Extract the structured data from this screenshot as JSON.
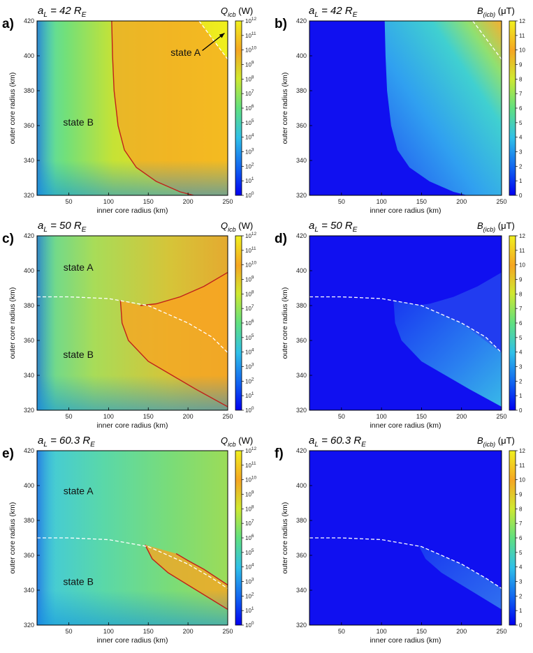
{
  "chart_data": [
    {
      "id": "a",
      "type": "heatmap",
      "panel_label": "a)",
      "title_symbol": "a",
      "title_sub": "L",
      "title_eq": " = 42 ",
      "title_unit_symbol": "R",
      "title_unit_sub": "E",
      "cbar_symbol": "Q",
      "cbar_sub": "icb",
      "cbar_unit": "(W)",
      "cbar_scale": "log",
      "cbar_ticks": [
        "10^0",
        "10^1",
        "10^2",
        "10^3",
        "10^4",
        "10^5",
        "10^6",
        "10^7",
        "10^8",
        "10^9",
        "10^10",
        "10^11",
        "10^12"
      ],
      "xlabel": "inner core radius (km)",
      "ylabel": "outer core radius (km)",
      "xlim": [
        10,
        250
      ],
      "ylim": [
        320,
        420
      ],
      "xticks": [
        50,
        100,
        150,
        200,
        250
      ],
      "yticks": [
        320,
        340,
        360,
        380,
        400,
        420
      ],
      "boundary": [
        [
          214,
          420
        ],
        [
          250,
          398
        ]
      ],
      "red_curve": [
        [
          104,
          420
        ],
        [
          105,
          400
        ],
        [
          107,
          380
        ],
        [
          112,
          360
        ],
        [
          120,
          346
        ],
        [
          135,
          336
        ],
        [
          160,
          328
        ],
        [
          190,
          322
        ],
        [
          207,
          320
        ]
      ],
      "red_curve2": [],
      "annotations": [
        {
          "text": "state A",
          "x": 197,
          "y": 400
        },
        {
          "text": "state B",
          "x": 62,
          "y": 360
        }
      ],
      "arrow": {
        "from": [
          218,
          403
        ],
        "to": [
          246,
          413
        ]
      }
    },
    {
      "id": "b",
      "type": "heatmap",
      "panel_label": "b)",
      "title_symbol": "a",
      "title_sub": "L",
      "title_eq": " = 42 ",
      "title_unit_symbol": "R",
      "title_unit_sub": "E",
      "cbar_symbol": "B",
      "cbar_sub": "(icb)",
      "cbar_unit": "(μT)",
      "cbar_scale": "linear",
      "cbar_ticks": [
        "0",
        "1",
        "2",
        "3",
        "4",
        "5",
        "6",
        "7",
        "8",
        "9",
        "10",
        "11",
        "12"
      ],
      "xlabel": "inner core radius (km)",
      "ylabel": "outer core radius (km)",
      "xlim": [
        10,
        250
      ],
      "ylim": [
        320,
        420
      ],
      "xticks": [
        50,
        100,
        150,
        200,
        250
      ],
      "yticks": [
        320,
        340,
        360,
        380,
        400,
        420
      ],
      "boundary": [
        [
          214,
          420
        ],
        [
          250,
          398
        ]
      ],
      "red_curve": [],
      "red_curve2": [],
      "annotations": [],
      "arrow": null
    },
    {
      "id": "c",
      "type": "heatmap",
      "panel_label": "c)",
      "title_symbol": "a",
      "title_sub": "L",
      "title_eq": " = 50 ",
      "title_unit_symbol": "R",
      "title_unit_sub": "E",
      "cbar_symbol": "Q",
      "cbar_sub": "icb",
      "cbar_unit": "(W)",
      "cbar_scale": "log",
      "cbar_ticks": [
        "10^0",
        "10^1",
        "10^2",
        "10^3",
        "10^4",
        "10^5",
        "10^6",
        "10^7",
        "10^8",
        "10^9",
        "10^10",
        "10^11",
        "10^12"
      ],
      "xlabel": "inner core radius (km)",
      "ylabel": "outer core radius (km)",
      "xlim": [
        10,
        250
      ],
      "ylim": [
        320,
        420
      ],
      "xticks": [
        50,
        100,
        150,
        200,
        250
      ],
      "yticks": [
        320,
        340,
        360,
        380,
        400,
        420
      ],
      "boundary": [
        [
          10,
          385
        ],
        [
          50,
          385
        ],
        [
          100,
          384
        ],
        [
          150,
          380
        ],
        [
          200,
          370
        ],
        [
          230,
          362
        ],
        [
          250,
          353
        ]
      ],
      "red_curve": [
        [
          115,
          383
        ],
        [
          117,
          370
        ],
        [
          125,
          360
        ],
        [
          150,
          348
        ],
        [
          180,
          340
        ],
        [
          210,
          332
        ],
        [
          250,
          322
        ]
      ],
      "red_curve2": [
        [
          140,
          380
        ],
        [
          160,
          381
        ],
        [
          190,
          385
        ],
        [
          220,
          391
        ],
        [
          250,
          399
        ]
      ],
      "annotations": [
        {
          "text": "state A",
          "x": 62,
          "y": 400
        },
        {
          "text": "state B",
          "x": 62,
          "y": 350
        }
      ],
      "arrow": null
    },
    {
      "id": "d",
      "type": "heatmap",
      "panel_label": "d)",
      "title_symbol": "a",
      "title_sub": "L",
      "title_eq": " = 50 ",
      "title_unit_symbol": "R",
      "title_unit_sub": "E",
      "cbar_symbol": "B",
      "cbar_sub": "(icb)",
      "cbar_unit": "(μT)",
      "cbar_scale": "linear",
      "cbar_ticks": [
        "0",
        "1",
        "2",
        "3",
        "4",
        "5",
        "6",
        "7",
        "8",
        "9",
        "10",
        "11",
        "12"
      ],
      "xlabel": "inner core radius (km)",
      "ylabel": "outer core radius (km)",
      "xlim": [
        10,
        250
      ],
      "ylim": [
        320,
        420
      ],
      "xticks": [
        50,
        100,
        150,
        200,
        250
      ],
      "yticks": [
        320,
        340,
        360,
        380,
        400,
        420
      ],
      "boundary": [
        [
          10,
          385
        ],
        [
          50,
          385
        ],
        [
          100,
          384
        ],
        [
          150,
          380
        ],
        [
          200,
          370
        ],
        [
          230,
          362
        ],
        [
          250,
          353
        ]
      ],
      "red_curve": [],
      "red_curve2": [],
      "annotations": [],
      "arrow": null
    },
    {
      "id": "e",
      "type": "heatmap",
      "panel_label": "e)",
      "title_symbol": "a",
      "title_sub": "L",
      "title_eq": " = 60.3 ",
      "title_unit_symbol": "R",
      "title_unit_sub": "E",
      "cbar_symbol": "Q",
      "cbar_sub": "icb",
      "cbar_unit": "(W)",
      "cbar_scale": "log",
      "cbar_ticks": [
        "10^0",
        "10^1",
        "10^2",
        "10^3",
        "10^4",
        "10^5",
        "10^6",
        "10^7",
        "10^8",
        "10^9",
        "10^10",
        "10^11",
        "10^12"
      ],
      "xlabel": "inner core radius (km)",
      "ylabel": "outer core radius (km)",
      "xlim": [
        10,
        250
      ],
      "ylim": [
        320,
        420
      ],
      "xticks": [
        50,
        100,
        150,
        200,
        250
      ],
      "yticks": [
        320,
        340,
        360,
        380,
        400,
        420
      ],
      "boundary": [
        [
          10,
          370
        ],
        [
          50,
          370
        ],
        [
          100,
          369
        ],
        [
          150,
          365
        ],
        [
          200,
          355
        ],
        [
          230,
          347
        ],
        [
          250,
          341
        ]
      ],
      "red_curve": [
        [
          146,
          366
        ],
        [
          155,
          358
        ],
        [
          175,
          350
        ],
        [
          200,
          343
        ],
        [
          225,
          336
        ],
        [
          250,
          329
        ]
      ],
      "red_curve2": [
        [
          185,
          361
        ],
        [
          200,
          357
        ],
        [
          220,
          352
        ],
        [
          250,
          343
        ]
      ],
      "annotations": [
        {
          "text": "state A",
          "x": 62,
          "y": 395
        },
        {
          "text": "state B",
          "x": 62,
          "y": 343
        }
      ],
      "arrow": null
    },
    {
      "id": "f",
      "type": "heatmap",
      "panel_label": "f)",
      "title_symbol": "a",
      "title_sub": "L",
      "title_eq": " = 60.3 ",
      "title_unit_symbol": "R",
      "title_unit_sub": "E",
      "cbar_symbol": "B",
      "cbar_sub": "(icb)",
      "cbar_unit": "(μT)",
      "cbar_scale": "linear",
      "cbar_ticks": [
        "0",
        "1",
        "2",
        "3",
        "4",
        "5",
        "6",
        "7",
        "8",
        "9",
        "10",
        "11",
        "12"
      ],
      "xlabel": "inner core radius (km)",
      "ylabel": "outer core radius (km)",
      "xlim": [
        10,
        250
      ],
      "ylim": [
        320,
        420
      ],
      "xticks": [
        50,
        100,
        150,
        200,
        250
      ],
      "yticks": [
        320,
        340,
        360,
        380,
        400,
        420
      ],
      "boundary": [
        [
          10,
          370
        ],
        [
          50,
          370
        ],
        [
          100,
          369
        ],
        [
          150,
          365
        ],
        [
          200,
          355
        ],
        [
          230,
          347
        ],
        [
          250,
          341
        ]
      ],
      "red_curve": [],
      "red_curve2": [],
      "annotations": [],
      "arrow": null
    }
  ],
  "colors": {
    "jet_low": "#1010f0",
    "jet_cyan": "#30c0e8",
    "jet_green": "#60e080",
    "jet_yellow": "#f0f020",
    "jet_orange": "#f5a623",
    "red_curve": "#c0201b",
    "boundary": "#ffffff",
    "arrow": "#000000"
  }
}
